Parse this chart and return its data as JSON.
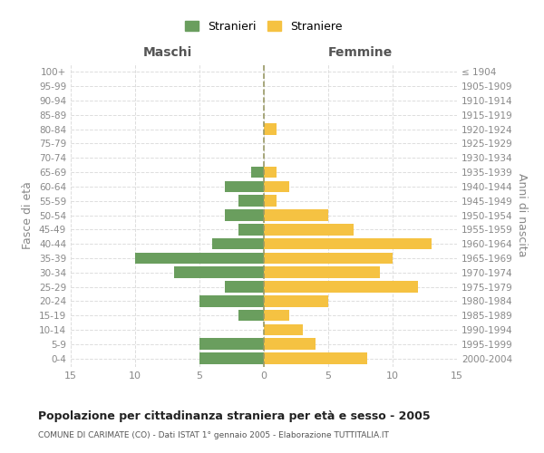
{
  "age_groups": [
    "100+",
    "95-99",
    "90-94",
    "85-89",
    "80-84",
    "75-79",
    "70-74",
    "65-69",
    "60-64",
    "55-59",
    "50-54",
    "45-49",
    "40-44",
    "35-39",
    "30-34",
    "25-29",
    "20-24",
    "15-19",
    "10-14",
    "5-9",
    "0-4"
  ],
  "birth_years": [
    "≤ 1904",
    "1905-1909",
    "1910-1914",
    "1915-1919",
    "1920-1924",
    "1925-1929",
    "1930-1934",
    "1935-1939",
    "1940-1944",
    "1945-1949",
    "1950-1954",
    "1955-1959",
    "1960-1964",
    "1965-1969",
    "1970-1974",
    "1975-1979",
    "1980-1984",
    "1985-1989",
    "1990-1994",
    "1995-1999",
    "2000-2004"
  ],
  "maschi": [
    0,
    0,
    0,
    0,
    0,
    0,
    0,
    1,
    3,
    2,
    3,
    2,
    4,
    10,
    7,
    3,
    5,
    2,
    0,
    5,
    5
  ],
  "femmine": [
    0,
    0,
    0,
    0,
    1,
    0,
    0,
    1,
    2,
    1,
    5,
    7,
    13,
    10,
    9,
    12,
    5,
    2,
    3,
    4,
    8
  ],
  "color_maschi": "#6a9e5e",
  "color_femmine": "#f5c242",
  "title": "Popolazione per cittadinanza straniera per età e sesso - 2005",
  "subtitle": "COMUNE DI CARIMATE (CO) - Dati ISTAT 1° gennaio 2005 - Elaborazione TUTTITALIA.IT",
  "xlabel_left": "Maschi",
  "xlabel_right": "Femmine",
  "ylabel_left": "Fasce di età",
  "ylabel_right": "Anni di nascita",
  "xlim": 15,
  "legend_stranieri": "Stranieri",
  "legend_straniere": "Straniere",
  "bg_color": "#ffffff",
  "grid_color": "#dddddd",
  "bar_height": 0.8,
  "zero_line_color": "#999966",
  "tick_color": "#888888"
}
